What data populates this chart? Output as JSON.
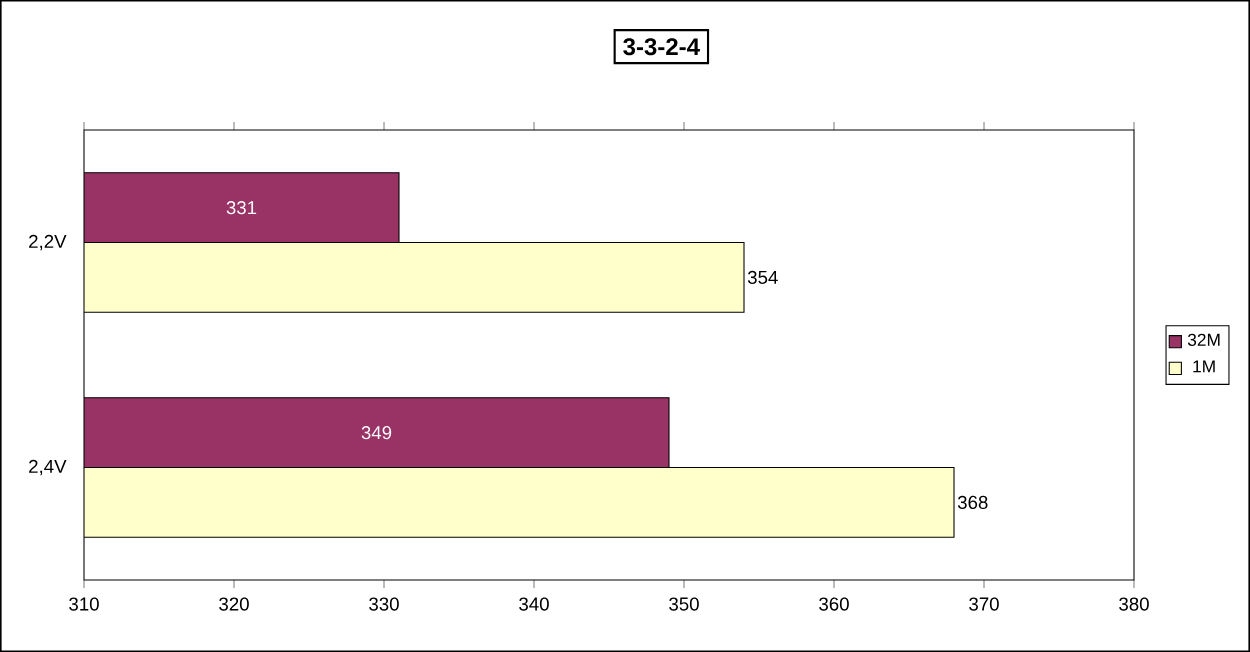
{
  "chart_data": {
    "type": "bar",
    "orientation": "horizontal",
    "title": "3-3-2-4",
    "categories": [
      "2,2V",
      "2,4V"
    ],
    "series": [
      {
        "name": "32M",
        "color": "#993366",
        "values": [
          331,
          349
        ]
      },
      {
        "name": "1M",
        "color": "#ffffcc",
        "values": [
          354,
          368
        ]
      }
    ],
    "xlim": [
      310,
      380
    ],
    "xticks": [
      310,
      320,
      330,
      340,
      350,
      360,
      370,
      380
    ],
    "data_labels": true,
    "legend": "right",
    "grid": false
  }
}
